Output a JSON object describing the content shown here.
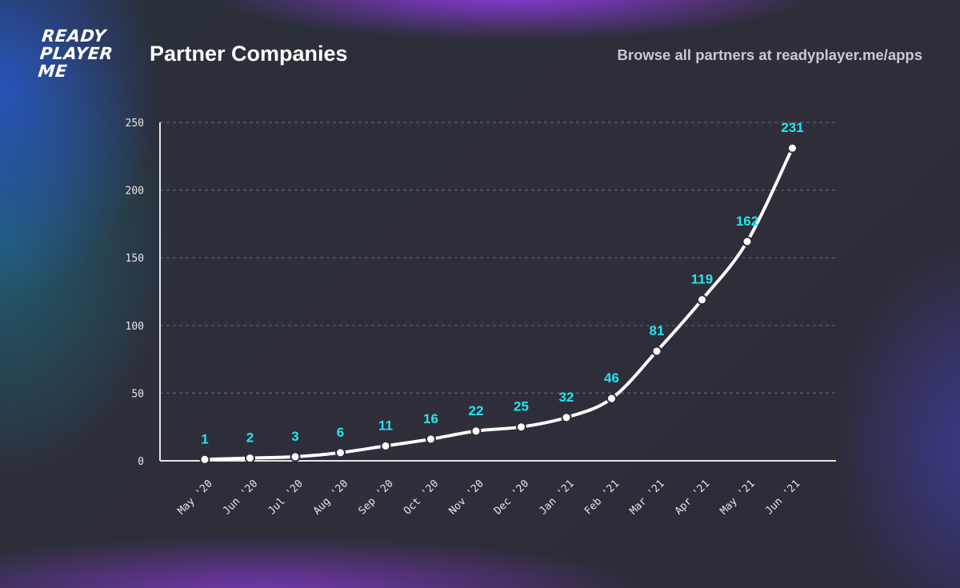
{
  "header": {
    "logo_lines": [
      "READY",
      "PLAYER",
      "ME"
    ],
    "title": "Partner Companies",
    "subtitle": "Browse all partners at readyplayer.me/apps"
  },
  "colors": {
    "line": "#ffffff",
    "data_label": "#21e7f0",
    "grid": "#5d6070",
    "axis": "#e6e6ea"
  },
  "chart_data": {
    "type": "line",
    "title": "Partner Companies",
    "xlabel": "",
    "ylabel": "",
    "ylim": [
      0,
      250
    ],
    "yticks": [
      0,
      50,
      100,
      150,
      200,
      250
    ],
    "grid": true,
    "categories": [
      "May '20",
      "Jun '20",
      "Jul '20",
      "Aug '20",
      "Sep '20",
      "Oct '20",
      "Nov '20",
      "Dec '20",
      "Jan '21",
      "Feb '21",
      "Mar '21",
      "Apr '21",
      "May '21",
      "Jun '21"
    ],
    "series": [
      {
        "name": "Partner Companies",
        "values": [
          1,
          2,
          3,
          6,
          11,
          16,
          22,
          25,
          32,
          46,
          81,
          119,
          162,
          231
        ]
      }
    ]
  }
}
